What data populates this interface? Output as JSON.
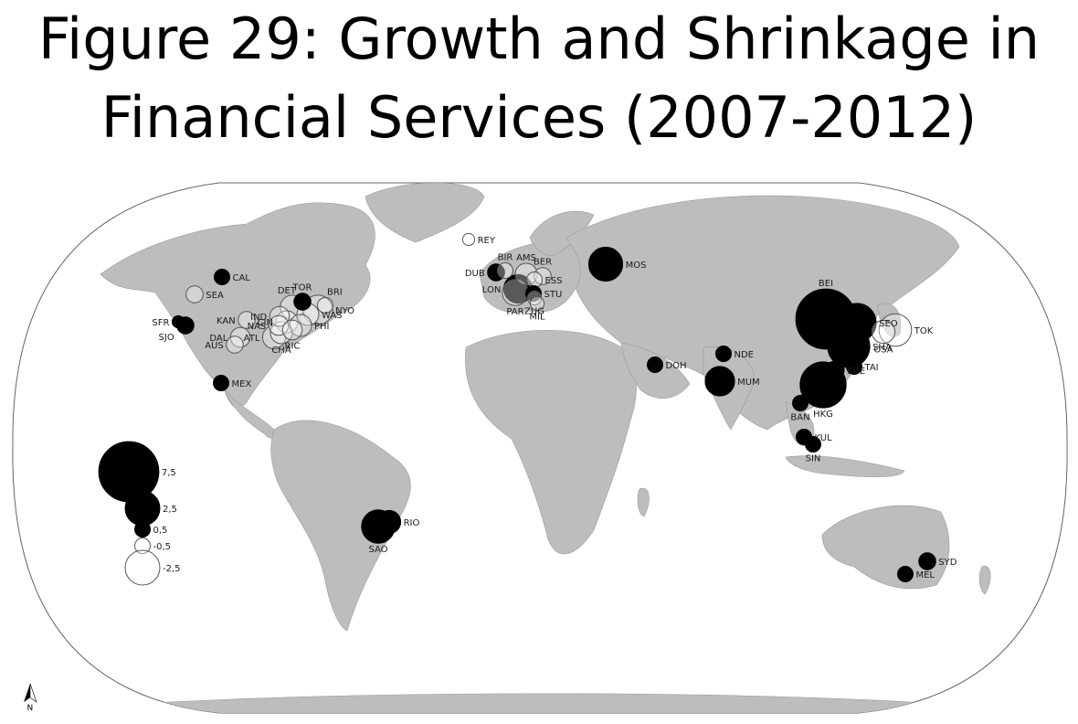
{
  "title": {
    "line1": "Figure 29: Growth and Shrinkage in",
    "line2": "Financial Services (2007-2012)"
  },
  "colors": {
    "land": "#bdbdbd",
    "ocean": "#ffffff",
    "growth": "#000000",
    "shrinkage_fill": "#ffffff",
    "shrinkage_stroke": "#555555"
  },
  "cities": [
    {
      "code": "REY",
      "value": -0.3
    },
    {
      "code": "CAL",
      "value": 0.5
    },
    {
      "code": "SEA",
      "value": -0.6
    },
    {
      "code": "SFR",
      "value": 0.3
    },
    {
      "code": "SJO",
      "value": 0.6
    },
    {
      "code": "TOR",
      "value": 0.6
    },
    {
      "code": "DET",
      "value": -1.2
    },
    {
      "code": "BRI",
      "value": -0.5
    },
    {
      "code": "IND",
      "value": -0.8
    },
    {
      "code": "NYO",
      "value": -1.8
    },
    {
      "code": "KAN",
      "value": -0.6
    },
    {
      "code": "CIN",
      "value": -1.0
    },
    {
      "code": "WAS",
      "value": -1.0
    },
    {
      "code": "NAS",
      "value": -0.8
    },
    {
      "code": "PHI",
      "value": -1.0
    },
    {
      "code": "DAL",
      "value": -0.8
    },
    {
      "code": "ATL",
      "value": -1.1
    },
    {
      "code": "RIC",
      "value": -0.8
    },
    {
      "code": "AUS",
      "value": -0.6
    },
    {
      "code": "CHA",
      "value": -1.0
    },
    {
      "code": "MEX",
      "value": 0.5
    },
    {
      "code": "BIR",
      "value": -0.5
    },
    {
      "code": "DUB",
      "value": 0.6
    },
    {
      "code": "AMS",
      "value": -1.0
    },
    {
      "code": "BER",
      "value": -0.6
    },
    {
      "code": "ESS",
      "value": -0.5
    },
    {
      "code": "LON",
      "value": 1.7
    },
    {
      "code": "STU",
      "value": 0.5
    },
    {
      "code": "PAR",
      "value": -1.4
    },
    {
      "code": "ZUG",
      "value": -0.4
    },
    {
      "code": "MIL",
      "value": -0.4
    },
    {
      "code": "MOS",
      "value": 2.4
    },
    {
      "code": "DOH",
      "value": 0.5
    },
    {
      "code": "NDE",
      "value": 0.5
    },
    {
      "code": "MUM",
      "value": 1.8
    },
    {
      "code": "BEI",
      "value": 7.5
    },
    {
      "code": "SEO",
      "value": 3.1
    },
    {
      "code": "TOK",
      "value": -2.2
    },
    {
      "code": "OSA",
      "value": -1.1
    },
    {
      "code": "SHA",
      "value": 3.7
    },
    {
      "code": "TAI",
      "value": 0.5
    },
    {
      "code": "SHE",
      "value": 0.7
    },
    {
      "code": "HKG",
      "value": 4.4
    },
    {
      "code": "BAN",
      "value": 0.5
    },
    {
      "code": "KUL",
      "value": 0.5
    },
    {
      "code": "SIN",
      "value": 0.5
    },
    {
      "code": "RIO",
      "value": 1.1
    },
    {
      "code": "SAO",
      "value": 2.3
    },
    {
      "code": "SYD",
      "value": 0.6
    },
    {
      "code": "MEL",
      "value": 0.5
    }
  ],
  "legend": [
    {
      "label": "7,5",
      "value": 7.5
    },
    {
      "label": "2,5",
      "value": 2.5
    },
    {
      "label": "0,5",
      "value": 0.5
    },
    {
      "label": "-0,5",
      "value": -0.5
    },
    {
      "label": "-2,5",
      "value": -2.5
    }
  ],
  "north_arrow": {
    "label": "N",
    "icon": "north-arrow-icon"
  }
}
